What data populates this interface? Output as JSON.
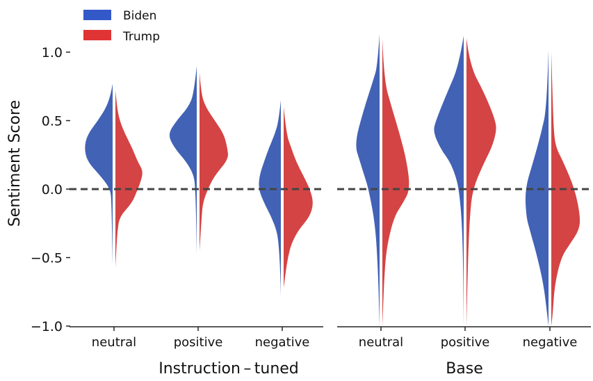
{
  "chart_data": {
    "type": "split-violin",
    "ylabel": "Sentiment Score",
    "ylim": [
      -1.0,
      1.0
    ],
    "yticks": [
      {
        "value": 1.0,
        "label": "1.0"
      },
      {
        "value": 0.5,
        "label": "0.5"
      },
      {
        "value": 0.0,
        "label": "0.0"
      },
      {
        "value": -0.5,
        "label": "−0.5"
      },
      {
        "value": -1.0,
        "label": "−1.0"
      }
    ],
    "reference_line": {
      "value": 0.0,
      "style": "dashed"
    },
    "legend": {
      "placement": "top-left",
      "entries": [
        {
          "name": "Biden",
          "color": "#3358c8"
        },
        {
          "name": "Trump",
          "color": "#e03434"
        }
      ]
    },
    "colors": {
      "Biden": "#4262b5",
      "Trump": "#d44444"
    },
    "density_note": "relative density (0-1) at score y",
    "panels": [
      {
        "label": "Instruction – tuned",
        "categories": [
          {
            "label": "neutral",
            "Biden": [
              [
                0.77,
                0
              ],
              [
                0.7,
                0.05
              ],
              [
                0.6,
                0.2
              ],
              [
                0.5,
                0.48
              ],
              [
                0.4,
                0.82
              ],
              [
                0.3,
                0.93
              ],
              [
                0.2,
                0.82
              ],
              [
                0.1,
                0.41
              ],
              [
                0,
                0.07
              ],
              [
                -0.1,
                0.04
              ],
              [
                -0.3,
                0.02
              ],
              [
                -0.55,
                0
              ]
            ],
            "Trump": [
              [
                0.72,
                0
              ],
              [
                0.6,
                0.05
              ],
              [
                0.5,
                0.14
              ],
              [
                0.4,
                0.32
              ],
              [
                0.3,
                0.55
              ],
              [
                0.2,
                0.73
              ],
              [
                0.13,
                0.91
              ],
              [
                0.05,
                0.82
              ],
              [
                0,
                0.73
              ],
              [
                -0.1,
                0.55
              ],
              [
                -0.2,
                0.14
              ],
              [
                -0.3,
                0.07
              ],
              [
                -0.4,
                0.04
              ],
              [
                -0.57,
                0
              ]
            ]
          },
          {
            "label": "positive",
            "Biden": [
              [
                0.9,
                0
              ],
              [
                0.7,
                0.09
              ],
              [
                0.6,
                0.27
              ],
              [
                0.5,
                0.66
              ],
              [
                0.4,
                0.95
              ],
              [
                0.3,
                0.73
              ],
              [
                0.2,
                0.34
              ],
              [
                0.1,
                0.09
              ],
              [
                0,
                0.05
              ],
              [
                -0.2,
                0.02
              ],
              [
                -0.48,
                0
              ]
            ],
            "Trump": [
              [
                0.85,
                0
              ],
              [
                0.7,
                0.05
              ],
              [
                0.6,
                0.2
              ],
              [
                0.5,
                0.5
              ],
              [
                0.4,
                0.8
              ],
              [
                0.3,
                0.91
              ],
              [
                0.22,
                0.95
              ],
              [
                0.1,
                0.5
              ],
              [
                0,
                0.27
              ],
              [
                -0.1,
                0.11
              ],
              [
                -0.2,
                0.07
              ],
              [
                -0.45,
                0
              ]
            ]
          },
          {
            "label": "negative",
            "Biden": [
              [
                0.65,
                0
              ],
              [
                0.5,
                0.07
              ],
              [
                0.4,
                0.2
              ],
              [
                0.3,
                0.39
              ],
              [
                0.2,
                0.55
              ],
              [
                0.1,
                0.7
              ],
              [
                0,
                0.73
              ],
              [
                -0.1,
                0.55
              ],
              [
                -0.2,
                0.32
              ],
              [
                -0.3,
                0.14
              ],
              [
                -0.4,
                0.07
              ],
              [
                -0.6,
                0.02
              ],
              [
                -0.78,
                0
              ]
            ],
            "Trump": [
              [
                0.6,
                0
              ],
              [
                0.4,
                0.09
              ],
              [
                0.3,
                0.25
              ],
              [
                0.2,
                0.41
              ],
              [
                0.1,
                0.64
              ],
              [
                0,
                0.86
              ],
              [
                -0.1,
                0.98
              ],
              [
                -0.2,
                0.86
              ],
              [
                -0.3,
                0.48
              ],
              [
                -0.4,
                0.25
              ],
              [
                -0.5,
                0.14
              ],
              [
                -0.6,
                0.07
              ],
              [
                -0.72,
                0
              ]
            ]
          }
        ]
      },
      {
        "label": "Base",
        "categories": [
          {
            "label": "neutral",
            "Biden": [
              [
                1.13,
                0
              ],
              [
                0.9,
                0.07
              ],
              [
                0.8,
                0.2
              ],
              [
                0.58,
                0.52
              ],
              [
                0.33,
                0.82
              ],
              [
                0.2,
                0.64
              ],
              [
                0.1,
                0.5
              ],
              [
                0,
                0.36
              ],
              [
                -0.26,
                0.14
              ],
              [
                -0.6,
                0.05
              ],
              [
                -1.0,
                0
              ]
            ],
            "Trump": [
              [
                1.1,
                0
              ],
              [
                0.8,
                0.05
              ],
              [
                0.6,
                0.3
              ],
              [
                0.4,
                0.57
              ],
              [
                0.2,
                0.8
              ],
              [
                0,
                0.91
              ],
              [
                -0.1,
                0.68
              ],
              [
                -0.2,
                0.39
              ],
              [
                -0.4,
                0.16
              ],
              [
                -0.6,
                0.07
              ],
              [
                -1.0,
                0
              ]
            ]
          },
          {
            "label": "positive",
            "Biden": [
              [
                1.12,
                0
              ],
              [
                0.9,
                0.16
              ],
              [
                0.7,
                0.55
              ],
              [
                0.5,
                0.91
              ],
              [
                0.42,
                1.0
              ],
              [
                0.3,
                0.77
              ],
              [
                0.2,
                0.45
              ],
              [
                0.1,
                0.27
              ],
              [
                0,
                0.16
              ],
              [
                -0.2,
                0.07
              ],
              [
                -0.5,
                0.02
              ],
              [
                -1.0,
                0
              ]
            ],
            "Trump": [
              [
                1.1,
                0
              ],
              [
                0.9,
                0.11
              ],
              [
                0.7,
                0.59
              ],
              [
                0.5,
                0.95
              ],
              [
                0.42,
                0.98
              ],
              [
                0.3,
                0.82
              ],
              [
                0.2,
                0.59
              ],
              [
                0,
                0.2
              ],
              [
                -0.2,
                0.11
              ],
              [
                -0.5,
                0.05
              ],
              [
                -1.0,
                0
              ]
            ]
          },
          {
            "label": "negative",
            "Biden": [
              [
                1.02,
                0
              ],
              [
                0.6,
                0.05
              ],
              [
                0.4,
                0.25
              ],
              [
                0.2,
                0.5
              ],
              [
                0,
                0.77
              ],
              [
                -0.2,
                0.73
              ],
              [
                -0.3,
                0.61
              ],
              [
                -0.5,
                0.36
              ],
              [
                -0.7,
                0.16
              ],
              [
                -0.9,
                0.05
              ],
              [
                -1.0,
                0
              ]
            ],
            "Trump": [
              [
                1.0,
                0
              ],
              [
                0.6,
                0.05
              ],
              [
                0.4,
                0.09
              ],
              [
                0.3,
                0.16
              ],
              [
                0.2,
                0.39
              ],
              [
                0,
                0.77
              ],
              [
                -0.2,
                0.95
              ],
              [
                -0.3,
                0.91
              ],
              [
                -0.4,
                0.61
              ],
              [
                -0.5,
                0.32
              ],
              [
                -0.7,
                0.11
              ],
              [
                -0.9,
                0.05
              ],
              [
                -1.0,
                0
              ]
            ]
          }
        ]
      }
    ]
  }
}
